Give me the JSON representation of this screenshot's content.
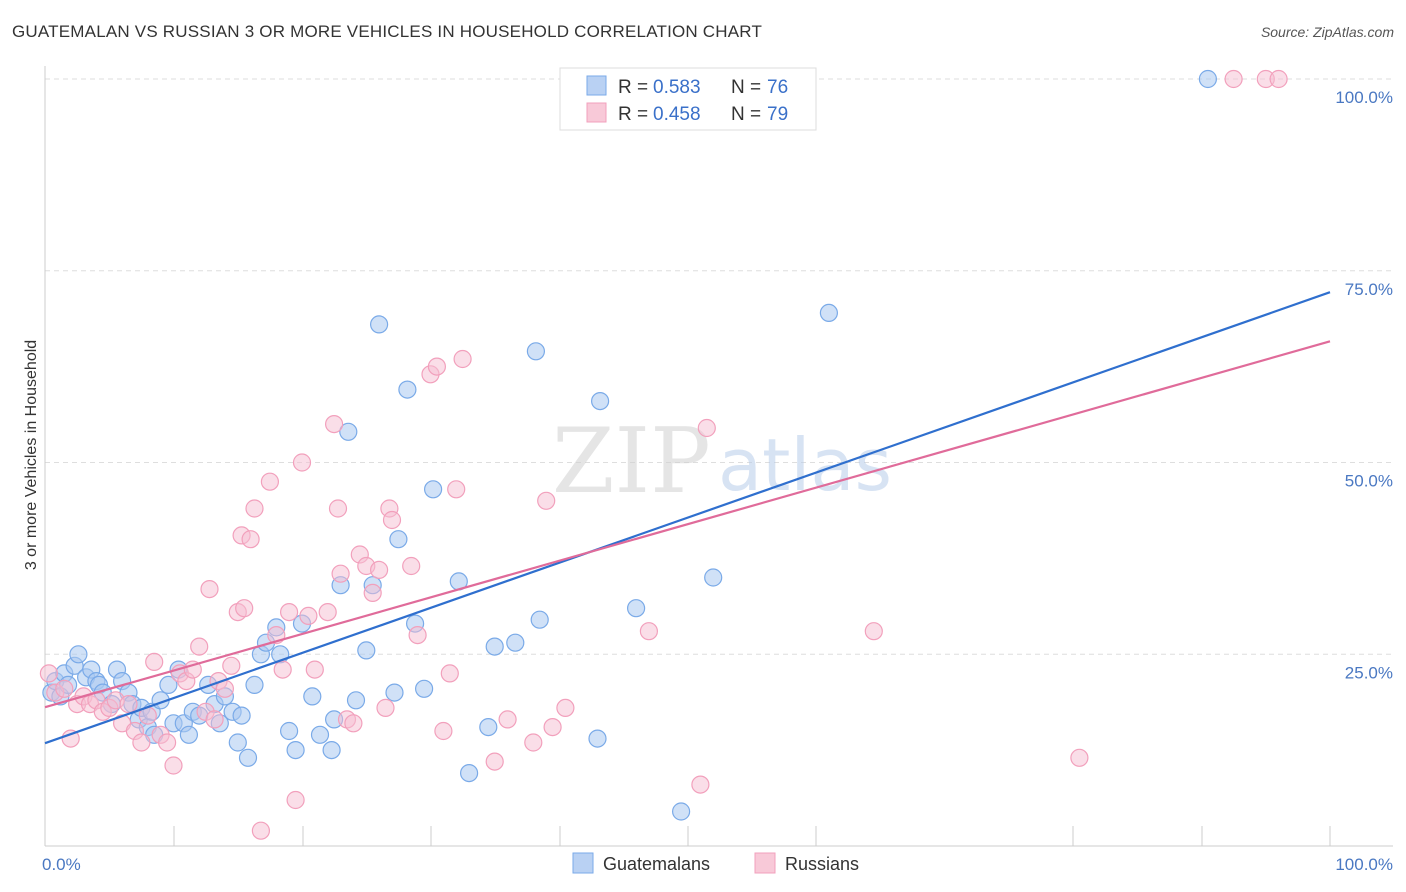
{
  "title": "GUATEMALAN VS RUSSIAN 3 OR MORE VEHICLES IN HOUSEHOLD CORRELATION CHART",
  "source": "Source: ZipAtlas.com",
  "watermark": {
    "part1": "ZIP",
    "part2": "atlas"
  },
  "legend_top": [
    {
      "r_label": "R = ",
      "r_value": "0.583",
      "n_label": "N = ",
      "n_value": "76"
    },
    {
      "r_label": "R = ",
      "r_value": "0.458",
      "n_label": "N = ",
      "n_value": "79"
    }
  ],
  "chart_data": {
    "type": "scatter",
    "title": "GUATEMALAN VS RUSSIAN 3 OR MORE VEHICLES IN HOUSEHOLD CORRELATION CHART",
    "xlabel": "",
    "ylabel": "3 or more Vehicles in Household",
    "xlim": [
      0,
      100
    ],
    "ylim": [
      0,
      100
    ],
    "x_tick_labels": [
      "0.0%",
      "100.0%"
    ],
    "y_tick_labels": [
      "25.0%",
      "50.0%",
      "75.0%",
      "100.0%"
    ],
    "y_ticks": [
      25,
      50,
      75,
      100
    ],
    "grid": true,
    "legend_position": "bottom-center",
    "colors": {
      "Guatemalans": "#7aaae8",
      "Russians": "#f2a0bc",
      "line_blue": "#2f6fce",
      "line_pink": "#e06b9a"
    },
    "series": [
      {
        "name": "Guatemalans",
        "r": 0.583,
        "n": 76,
        "trend": {
          "x": [
            0,
            100
          ],
          "y": [
            13.4,
            72.2
          ]
        },
        "points": [
          [
            0.5,
            20
          ],
          [
            0.8,
            21.5
          ],
          [
            1.2,
            19.5
          ],
          [
            1.5,
            22.5
          ],
          [
            1.8,
            21
          ],
          [
            2.3,
            23.5
          ],
          [
            2.6,
            25
          ],
          [
            3.2,
            22
          ],
          [
            3.6,
            23
          ],
          [
            4,
            21.5
          ],
          [
            4.2,
            21
          ],
          [
            4.5,
            20
          ],
          [
            5.2,
            18.5
          ],
          [
            5.6,
            23
          ],
          [
            6,
            21.5
          ],
          [
            6.5,
            20
          ],
          [
            6.8,
            18.5
          ],
          [
            7.3,
            16.5
          ],
          [
            7.5,
            18
          ],
          [
            8,
            15.5
          ],
          [
            8.3,
            17.5
          ],
          [
            8.5,
            14.5
          ],
          [
            9,
            19
          ],
          [
            9.6,
            21
          ],
          [
            10,
            16
          ],
          [
            10.4,
            23
          ],
          [
            10.8,
            16
          ],
          [
            11.2,
            14.5
          ],
          [
            11.5,
            17.5
          ],
          [
            12,
            17
          ],
          [
            12.7,
            21
          ],
          [
            13.2,
            18.5
          ],
          [
            13.6,
            16
          ],
          [
            14,
            19.5
          ],
          [
            14.6,
            17.5
          ],
          [
            15,
            13.5
          ],
          [
            15.3,
            17
          ],
          [
            15.8,
            11.5
          ],
          [
            16.3,
            21
          ],
          [
            16.8,
            25
          ],
          [
            17.2,
            26.5
          ],
          [
            18,
            28.5
          ],
          [
            18.3,
            25
          ],
          [
            19,
            15
          ],
          [
            19.5,
            12.5
          ],
          [
            20,
            29
          ],
          [
            20.8,
            19.5
          ],
          [
            21.4,
            14.5
          ],
          [
            22.3,
            12.5
          ],
          [
            22.5,
            16.5
          ],
          [
            23,
            34
          ],
          [
            23.6,
            54
          ],
          [
            24.2,
            19
          ],
          [
            25,
            25.5
          ],
          [
            25.5,
            34
          ],
          [
            26,
            68
          ],
          [
            27.2,
            20
          ],
          [
            27.5,
            40
          ],
          [
            28.2,
            59.5
          ],
          [
            28.8,
            29
          ],
          [
            29.5,
            20.5
          ],
          [
            30.2,
            46.5
          ],
          [
            32.2,
            34.5
          ],
          [
            33,
            9.5
          ],
          [
            34.5,
            15.5
          ],
          [
            35,
            26
          ],
          [
            36.6,
            26.5
          ],
          [
            38.2,
            64.5
          ],
          [
            38.5,
            29.5
          ],
          [
            43,
            14
          ],
          [
            43.2,
            58
          ],
          [
            46,
            31
          ],
          [
            49.5,
            4.5
          ],
          [
            52,
            35
          ],
          [
            61,
            69.5
          ],
          [
            90.5,
            100
          ]
        ]
      },
      {
        "name": "Russians",
        "r": 0.458,
        "n": 79,
        "trend": {
          "x": [
            0,
            100
          ],
          "y": [
            18.1,
            65.8
          ]
        },
        "points": [
          [
            0.3,
            22.5
          ],
          [
            0.8,
            20
          ],
          [
            1.5,
            20.5
          ],
          [
            2,
            14
          ],
          [
            2.5,
            18.5
          ],
          [
            3,
            19.5
          ],
          [
            3.5,
            18.5
          ],
          [
            4,
            19
          ],
          [
            4.5,
            17.5
          ],
          [
            5,
            18
          ],
          [
            5.5,
            19
          ],
          [
            6,
            16
          ],
          [
            6.5,
            18.5
          ],
          [
            7,
            15
          ],
          [
            7.5,
            13.5
          ],
          [
            8,
            17
          ],
          [
            8.5,
            24
          ],
          [
            9,
            14.5
          ],
          [
            9.5,
            13.5
          ],
          [
            10,
            10.5
          ],
          [
            10.5,
            22.5
          ],
          [
            11,
            21.5
          ],
          [
            11.5,
            23
          ],
          [
            12,
            26
          ],
          [
            12.5,
            17.5
          ],
          [
            12.8,
            33.5
          ],
          [
            13.2,
            16.5
          ],
          [
            13.5,
            21.5
          ],
          [
            14,
            20.5
          ],
          [
            14.5,
            23.5
          ],
          [
            15,
            30.5
          ],
          [
            15.3,
            40.5
          ],
          [
            15.5,
            31
          ],
          [
            16,
            40
          ],
          [
            16.3,
            44
          ],
          [
            16.8,
            2
          ],
          [
            17.5,
            47.5
          ],
          [
            18,
            27.5
          ],
          [
            18.5,
            23
          ],
          [
            19,
            30.5
          ],
          [
            19.5,
            6
          ],
          [
            20,
            50
          ],
          [
            20.5,
            30
          ],
          [
            21,
            23
          ],
          [
            22,
            30.5
          ],
          [
            22.5,
            55
          ],
          [
            22.8,
            44
          ],
          [
            23,
            35.5
          ],
          [
            23.5,
            16.5
          ],
          [
            24,
            16
          ],
          [
            24.5,
            38
          ],
          [
            25,
            36.5
          ],
          [
            25.5,
            33
          ],
          [
            26,
            36
          ],
          [
            26.5,
            18
          ],
          [
            26.8,
            44
          ],
          [
            27,
            42.5
          ],
          [
            28.5,
            36.5
          ],
          [
            29,
            27.5
          ],
          [
            30,
            61.5
          ],
          [
            30.5,
            62.5
          ],
          [
            31,
            15
          ],
          [
            31.5,
            22.5
          ],
          [
            32,
            46.5
          ],
          [
            32.5,
            63.5
          ],
          [
            35,
            11
          ],
          [
            36,
            16.5
          ],
          [
            38,
            13.5
          ],
          [
            39,
            45
          ],
          [
            39.5,
            15.5
          ],
          [
            40.5,
            18
          ],
          [
            47,
            28
          ],
          [
            51,
            8
          ],
          [
            51.5,
            54.5
          ],
          [
            64.5,
            28
          ],
          [
            80.5,
            11.5
          ],
          [
            92.5,
            100
          ],
          [
            95,
            100
          ],
          [
            96,
            100
          ]
        ]
      }
    ]
  },
  "bottom_legend": [
    {
      "label": "Guatemalans"
    },
    {
      "label": "Russians"
    }
  ]
}
